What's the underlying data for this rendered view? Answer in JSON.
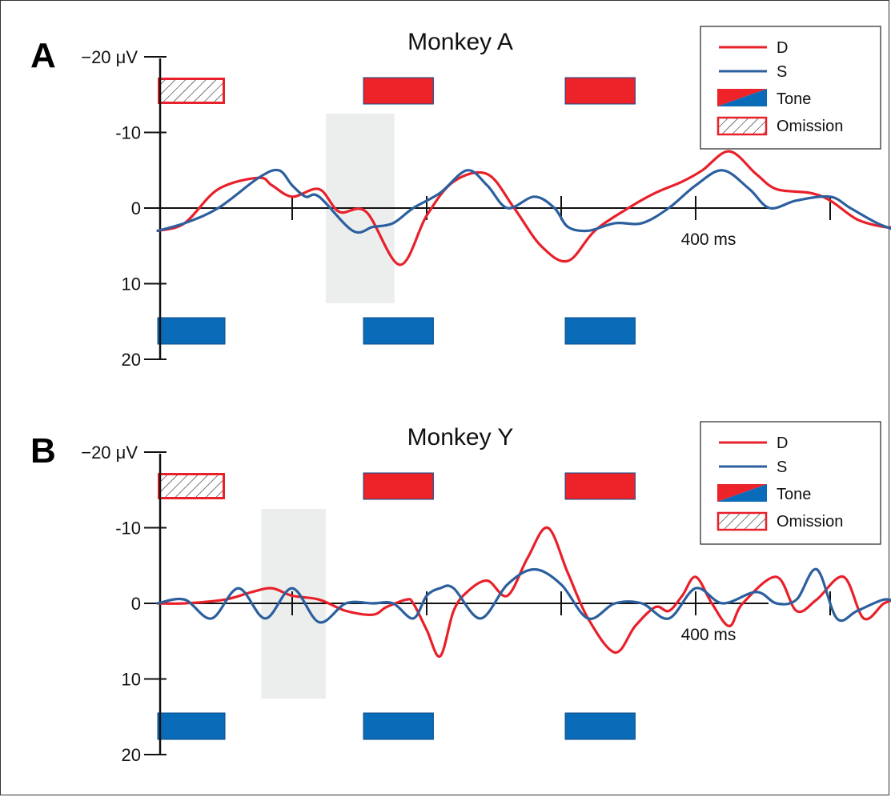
{
  "chart_data": [
    {
      "type": "line",
      "panel_letter": "A",
      "title": "Monkey A",
      "y_top_label": "−20 μV",
      "y_tick_labels": [
        "-10",
        "0",
        "10",
        "20"
      ],
      "x_label": "400 ms",
      "ylim": [
        20,
        -20
      ],
      "xlim": [
        -100,
        450
      ],
      "x_ticks": [
        0,
        100,
        200,
        300,
        400
      ],
      "legend_position": "top-right",
      "legend": [
        "D",
        "S",
        "Tone",
        "Omission"
      ],
      "shaded_window": [
        25,
        76
      ],
      "stimuli": {
        "D_row": [
          {
            "start": -100,
            "end": -50,
            "kind": "omission"
          },
          {
            "start": 53,
            "end": 105,
            "kind": "tone"
          },
          {
            "start": 203,
            "end": 255,
            "kind": "tone"
          }
        ],
        "S_row": [
          {
            "start": -100,
            "end": -50,
            "kind": "tone"
          },
          {
            "start": 53,
            "end": 105,
            "kind": "tone"
          },
          {
            "start": 203,
            "end": 255,
            "kind": "tone"
          }
        ]
      },
      "series": [
        {
          "name": "D",
          "color": "#e8202a",
          "x": [
            -100,
            -80,
            -55,
            -25,
            -15,
            0,
            20,
            35,
            55,
            80,
            100,
            120,
            145,
            165,
            185,
            205,
            225,
            250,
            270,
            290,
            305,
            325,
            345,
            360,
            385,
            400,
            420,
            440,
            450
          ],
          "y": [
            3,
            2,
            -2.5,
            -4,
            -3,
            -1.5,
            -2.5,
            0.5,
            0.5,
            7.5,
            1,
            -3.5,
            -4.5,
            0,
            5,
            7,
            3,
            0,
            -2,
            -3.5,
            -5,
            -7.5,
            -4.5,
            -2.5,
            -2,
            -1,
            1.5,
            2.5,
            2.5
          ]
        },
        {
          "name": "S",
          "color": "#2b5f9e",
          "x": [
            -100,
            -80,
            -55,
            -25,
            -10,
            0,
            10,
            20,
            45,
            60,
            75,
            90,
            110,
            130,
            145,
            160,
            180,
            195,
            205,
            220,
            240,
            260,
            280,
            300,
            320,
            340,
            355,
            375,
            400,
            415,
            435,
            450
          ],
          "y": [
            3,
            2,
            0,
            -4,
            -5,
            -3,
            -1.5,
            -1.5,
            3,
            2.5,
            2,
            0,
            -2,
            -5,
            -3,
            0,
            -1.5,
            0,
            2.5,
            3,
            2,
            2,
            0,
            -3,
            -5,
            -2.5,
            0,
            -1,
            -1.5,
            0,
            2,
            3
          ]
        }
      ]
    },
    {
      "type": "line",
      "panel_letter": "B",
      "title": "Monkey Y",
      "y_top_label": "−20 μV",
      "y_tick_labels": [
        "-10",
        "0",
        "10",
        "20"
      ],
      "x_label": "400 ms",
      "ylim": [
        20,
        -20
      ],
      "xlim": [
        -100,
        450
      ],
      "x_ticks": [
        0,
        100,
        200,
        300,
        400
      ],
      "legend_position": "top-right",
      "legend": [
        "D",
        "S",
        "Tone",
        "Omission"
      ],
      "shaded_window": [
        -23,
        25
      ],
      "stimuli": {
        "D_row": [
          {
            "start": -100,
            "end": -50,
            "kind": "omission"
          },
          {
            "start": 53,
            "end": 105,
            "kind": "tone"
          },
          {
            "start": 203,
            "end": 255,
            "kind": "tone"
          }
        ],
        "S_row": [
          {
            "start": -100,
            "end": -50,
            "kind": "tone"
          },
          {
            "start": 53,
            "end": 105,
            "kind": "tone"
          },
          {
            "start": 203,
            "end": 255,
            "kind": "tone"
          }
        ]
      },
      "series": [
        {
          "name": "D",
          "color": "#e8202a",
          "x": [
            -100,
            -80,
            -50,
            -30,
            -15,
            0,
            20,
            40,
            60,
            70,
            85,
            90,
            100,
            110,
            120,
            130,
            145,
            160,
            175,
            190,
            205,
            220,
            240,
            255,
            270,
            280,
            290,
            300,
            312,
            325,
            335,
            360,
            375,
            390,
            410,
            425,
            440,
            450
          ],
          "y": [
            0,
            0,
            -0.5,
            -1.5,
            -2,
            -1,
            -0.5,
            1,
            1.5,
            0.5,
            -0.5,
            0,
            3.5,
            7,
            1,
            -1.5,
            -3,
            -1,
            -6,
            -10,
            -4,
            2,
            6.5,
            3,
            0.5,
            1,
            -1,
            -3.5,
            0,
            3,
            0,
            -3.5,
            1,
            -0.5,
            -3.5,
            2,
            0,
            -0.5
          ]
        },
        {
          "name": "S",
          "color": "#2b5f9e",
          "x": [
            -100,
            -80,
            -60,
            -40,
            -20,
            0,
            20,
            40,
            60,
            75,
            90,
            100,
            110,
            120,
            140,
            160,
            180,
            200,
            220,
            240,
            260,
            280,
            300,
            320,
            345,
            360,
            375,
            390,
            405,
            420,
            440,
            450
          ],
          "y": [
            0,
            -0.5,
            2,
            -2,
            2,
            -2,
            2.5,
            0,
            0,
            0,
            2,
            -1,
            -2,
            -2,
            2,
            -2.5,
            -4.5,
            -2.5,
            2,
            0,
            0,
            2,
            -2,
            0,
            -1.5,
            0,
            -0.5,
            -4.5,
            2,
            1,
            -0.5,
            0
          ]
        }
      ]
    }
  ]
}
